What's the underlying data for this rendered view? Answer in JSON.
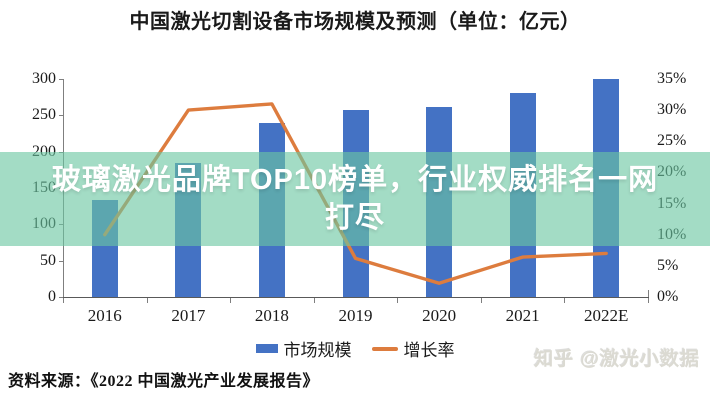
{
  "chart_data": {
    "type": "bar",
    "combo": "bar+line",
    "title": "中国激光切割设备市场规模及预测（单位：亿元）",
    "categories": [
      "2016",
      "2017",
      "2018",
      "2019",
      "2020",
      "2021",
      "2022E"
    ],
    "series": [
      {
        "name": "市场规模",
        "chart": "bar",
        "axis": "left",
        "unit": "亿元",
        "values": [
          134,
          184,
          240,
          258,
          261,
          281,
          300
        ],
        "color": "#4472c4"
      },
      {
        "name": "增长率",
        "chart": "line",
        "axis": "right",
        "unit": "%",
        "values": [
          10,
          30,
          31,
          6.2,
          2.2,
          6.4,
          7
        ],
        "color": "#dd7c3e"
      }
    ],
    "left_axis": {
      "min": 0,
      "max": 300,
      "step": 50,
      "tick_labels": [
        "0",
        "50",
        "100",
        "150",
        "200",
        "250",
        "300"
      ]
    },
    "right_axis": {
      "min": 0,
      "max": 35,
      "step": 5,
      "tick_labels": [
        "0%",
        "5%",
        "10%",
        "15%",
        "20%",
        "25%",
        "30%",
        "35%"
      ]
    },
    "legend": {
      "position": "bottom",
      "items": [
        "市场规模",
        "增长率"
      ]
    },
    "grid": false,
    "xlabel": "",
    "ylabel_left": "亿元",
    "ylabel_right": "%"
  },
  "banner": {
    "line1": "玻璃激光品牌TOP10榜单，行业权威排名一网",
    "line2": "打尽",
    "bg_color": "rgba(106,199,161,0.62)",
    "text_color": "#ffffff"
  },
  "source": "资料来源：《2022 中国激光产业发展报告》",
  "watermark": "知乎 @激光小数据"
}
